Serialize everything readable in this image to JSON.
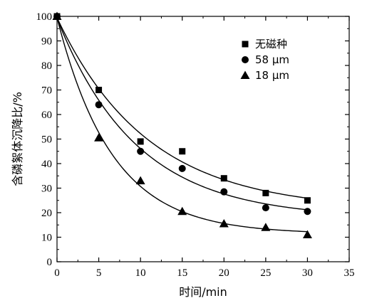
{
  "chart_data": {
    "type": "scatter",
    "xlabel": "时间/min",
    "ylabel": "含磷絮体沉降比/%",
    "xlim": [
      0,
      35
    ],
    "ylim": [
      0,
      100
    ],
    "xticks": [
      0,
      5,
      10,
      15,
      20,
      25,
      30,
      35
    ],
    "yticks": [
      0,
      10,
      20,
      30,
      40,
      50,
      60,
      70,
      80,
      90,
      100
    ],
    "grid": false,
    "legend_position": "top-right",
    "x": [
      0,
      5,
      10,
      15,
      20,
      25,
      30
    ],
    "series": [
      {
        "name": "无磁种",
        "marker": "square",
        "values": [
          100,
          70,
          49,
          45,
          34,
          28,
          25
        ],
        "fit_curve": true
      },
      {
        "name": "58 μm",
        "marker": "circle",
        "values": [
          100,
          64,
          45,
          38,
          28.5,
          22,
          20.5
        ],
        "fit_curve": true
      },
      {
        "name": "18 μm",
        "marker": "triangle",
        "values": [
          100,
          50.5,
          33,
          20.5,
          15.5,
          14,
          11
        ],
        "fit_curve": true
      }
    ]
  }
}
